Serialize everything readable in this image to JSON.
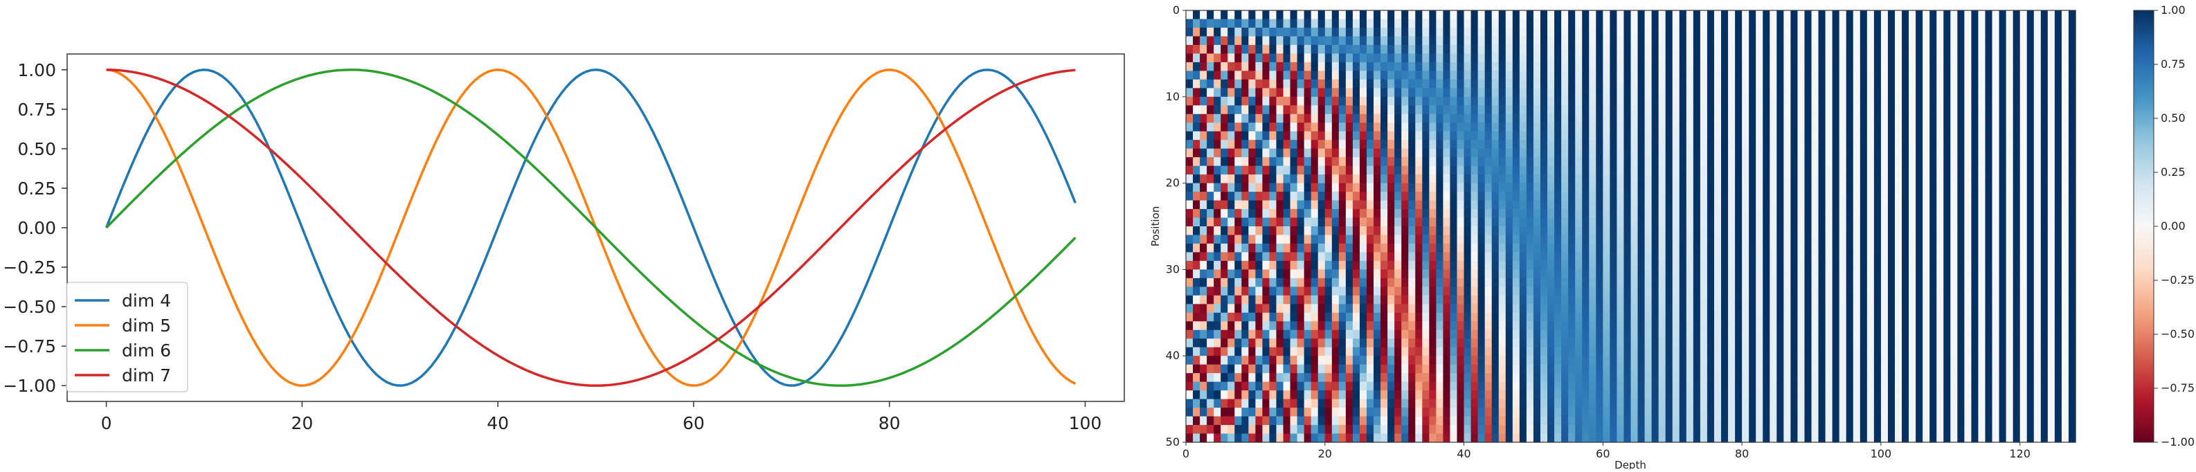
{
  "figure": {
    "left_panel_name": "sinusoid-lines",
    "right_panel_name": "positional-encoding-heatmap"
  },
  "chart_data": [
    {
      "type": "line",
      "title": "",
      "xlabel": "",
      "ylabel": "",
      "xlim": [
        -4,
        104
      ],
      "ylim": [
        -1.1,
        1.1
      ],
      "grid": false,
      "legend_placement": "lower-left",
      "x_ticks": [
        0,
        20,
        40,
        60,
        80,
        100
      ],
      "x_tick_labels": [
        "0",
        "20",
        "40",
        "60",
        "80",
        "100"
      ],
      "y_ticks": [
        1.0,
        0.75,
        0.5,
        0.25,
        0.0,
        -0.25,
        -0.5,
        -0.75,
        -1.0
      ],
      "y_tick_labels": [
        "1.00",
        "0.75",
        "0.50",
        "0.25",
        "0.00",
        "−0.25",
        "−0.50",
        "−0.75",
        "−1.00"
      ],
      "x_range": [
        0,
        99
      ],
      "series": [
        {
          "name": "dim 4",
          "color": "#1f77b4",
          "form": "sin",
          "period": 40
        },
        {
          "name": "dim 5",
          "color": "#ff7f0e",
          "form": "cos",
          "period": 40
        },
        {
          "name": "dim 6",
          "color": "#2ca02c",
          "form": "sin",
          "period": 100
        },
        {
          "name": "dim 7",
          "color": "#d62728",
          "form": "cos",
          "period": 100
        }
      ],
      "sample_points": {
        "x": [
          0,
          10,
          20,
          25,
          30,
          40,
          50,
          60,
          70,
          75,
          80,
          90,
          99
        ],
        "dim 4": [
          0.0,
          1.0,
          0.0,
          -0.71,
          -1.0,
          0.0,
          1.0,
          0.0,
          -1.0,
          -0.71,
          0.0,
          1.0,
          0.16
        ],
        "dim 5": [
          1.0,
          0.0,
          -1.0,
          -0.71,
          0.0,
          1.0,
          0.0,
          -1.0,
          0.0,
          0.71,
          1.0,
          0.0,
          -0.99
        ],
        "dim 6": [
          0.0,
          0.59,
          0.95,
          1.0,
          0.95,
          0.59,
          0.0,
          -0.59,
          -0.95,
          -1.0,
          -0.95,
          -0.59,
          -0.06
        ],
        "dim 7": [
          1.0,
          0.81,
          0.31,
          0.0,
          -0.31,
          -0.81,
          -1.0,
          -0.81,
          -0.31,
          0.0,
          0.31,
          0.81,
          1.0
        ]
      }
    },
    {
      "type": "heatmap",
      "title": "",
      "xlabel": "Depth",
      "ylabel": "Position",
      "xlim": [
        0,
        128
      ],
      "ylim": [
        50,
        0
      ],
      "n_positions": 50,
      "n_depth": 128,
      "encoding": "sinusoidal positional encoding: even depth sin, odd depth cos, base 10000",
      "colormap": "RdBu",
      "colormap_stops": [
        "#67001f",
        "#b2182b",
        "#d6604d",
        "#f4a582",
        "#fddbc7",
        "#f7f7f7",
        "#d1e5f0",
        "#92c5de",
        "#4393c3",
        "#2166ac",
        "#053061"
      ],
      "vmin": -1.0,
      "vmax": 1.0,
      "x_ticks": [
        0,
        20,
        40,
        60,
        80,
        100,
        120
      ],
      "x_tick_labels": [
        "0",
        "20",
        "40",
        "60",
        "80",
        "100",
        "120"
      ],
      "y_ticks": [
        0,
        10,
        20,
        30,
        40,
        50
      ],
      "y_tick_labels": [
        "0",
        "10",
        "20",
        "30",
        "40",
        "50"
      ],
      "colorbar": {
        "ticks": [
          1.0,
          0.75,
          0.5,
          0.25,
          0.0,
          -0.25,
          -0.5,
          -0.75,
          -1.0
        ],
        "tick_labels": [
          "1.00",
          "0.75",
          "0.50",
          "0.25",
          "0.00",
          "−0.25",
          "−0.50",
          "−0.75",
          "−1.00"
        ]
      }
    }
  ]
}
